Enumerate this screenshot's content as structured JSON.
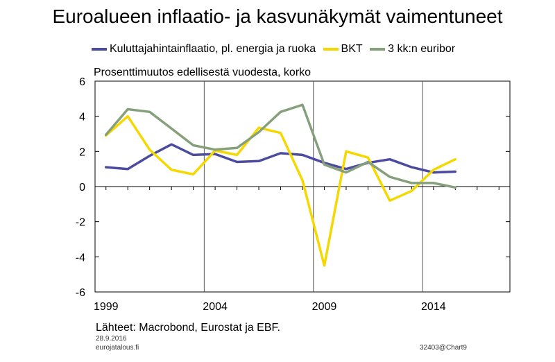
{
  "title": "Euroalueen inflaatio- ja kasvunäkymät vaimentuneet",
  "units_label": "Prosenttimuutos edellisestä vuodesta, korko",
  "source": "Lähteet: Macrobond, Eurostat ja EBF.",
  "date": "28.9.2016",
  "site": "eurojatalous.fi",
  "chart_code": "32403@Chart9",
  "chart_data": {
    "type": "line",
    "x": [
      1999,
      2000,
      2001,
      2002,
      2003,
      2004,
      2005,
      2006,
      2007,
      2008,
      2009,
      2010,
      2011,
      2012,
      2013,
      2014,
      2015
    ],
    "series": [
      {
        "name": "Kuluttajahintainflaatio, pl. energia ja ruoka",
        "color": "#4B4BA0",
        "values": [
          1.1,
          1.0,
          1.75,
          2.4,
          1.8,
          1.85,
          1.4,
          1.45,
          1.9,
          1.8,
          1.35,
          1.0,
          1.35,
          1.55,
          1.1,
          0.8,
          0.85
        ]
      },
      {
        "name": "BKT",
        "color": "#F5D800",
        "values": [
          2.9,
          4.0,
          2.1,
          0.95,
          0.7,
          2.05,
          1.8,
          3.35,
          3.05,
          0.35,
          -4.5,
          2.0,
          1.65,
          -0.8,
          -0.25,
          0.95,
          1.55
        ]
      },
      {
        "name": "3 kk:n euribor",
        "color": "#86A07C",
        "values": [
          2.95,
          4.4,
          4.25,
          3.3,
          2.35,
          2.1,
          2.2,
          3.1,
          4.25,
          4.65,
          1.25,
          0.8,
          1.4,
          0.55,
          0.2,
          0.2,
          -0.05
        ]
      }
    ],
    "x_ticks": [
      "1999",
      "2004",
      "2009",
      "2014"
    ],
    "y_ticks": [
      "6",
      "4",
      "2",
      "0",
      "-2",
      "-4",
      "-6"
    ],
    "xlim": [
      1998.5,
      2017.5
    ],
    "ylim": [
      -6,
      6
    ],
    "grid": "vertical at 2003.5, 2008.5, 2013.5",
    "legend_position": "top"
  }
}
